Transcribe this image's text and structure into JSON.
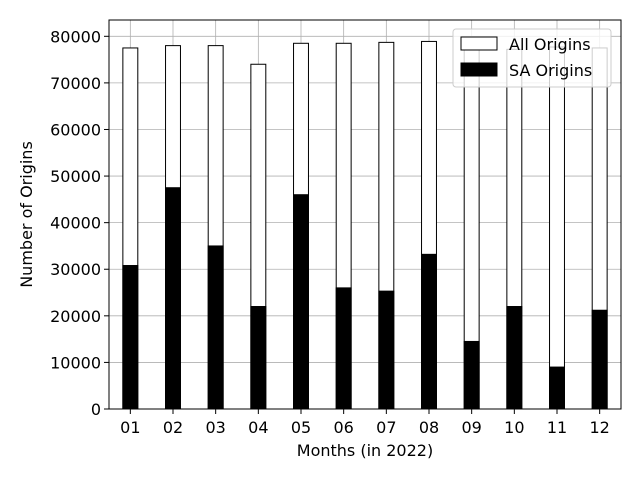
{
  "chart_data": {
    "type": "bar",
    "title": "",
    "xlabel": "Months (in 2022)",
    "ylabel": "Number of Origins",
    "categories": [
      "01",
      "02",
      "03",
      "04",
      "05",
      "06",
      "07",
      "08",
      "09",
      "10",
      "11",
      "12"
    ],
    "series": [
      {
        "name": "All Origins",
        "fill": "#ffffff",
        "stroke": "#000000",
        "values": [
          77500,
          78000,
          78000,
          74000,
          78500,
          78500,
          78700,
          78900,
          77700,
          77200,
          77700,
          77500
        ]
      },
      {
        "name": "SA Origins",
        "fill": "#000000",
        "stroke": "#000000",
        "values": [
          30800,
          47500,
          35000,
          22000,
          46000,
          26000,
          25300,
          33200,
          14500,
          22000,
          9000,
          21200
        ]
      }
    ],
    "ylim": [
      0,
      83500
    ],
    "yticks": [
      "0",
      "10000",
      "20000",
      "30000",
      "40000",
      "50000",
      "60000",
      "70000",
      "80000"
    ],
    "grid": true,
    "legend_position": "top-right"
  }
}
